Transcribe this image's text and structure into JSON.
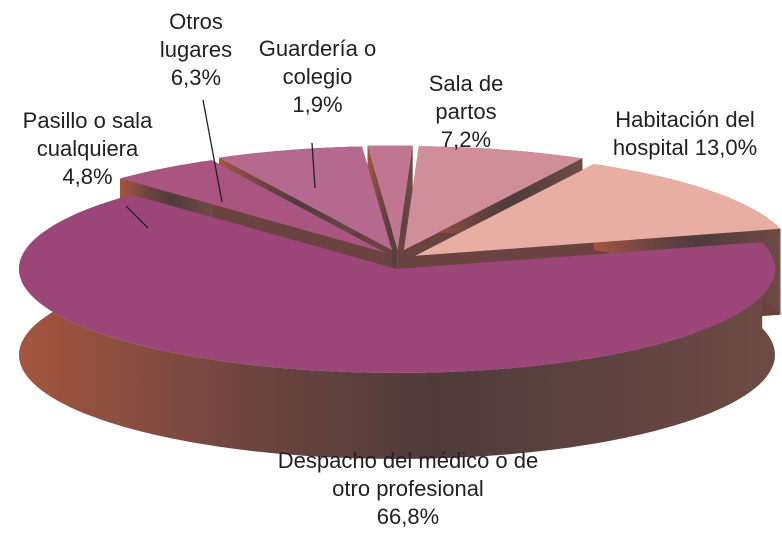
{
  "chart_data": {
    "type": "pie",
    "categories": [
      "Despacho del médico o de otro profesional",
      "Pasillo o sala cualquiera",
      "Otros lugares",
      "Guardería o colegio",
      "Sala de partos",
      "Habitación del hospital"
    ],
    "values": [
      66.8,
      4.8,
      6.3,
      1.9,
      7.2,
      13.0
    ],
    "value_labels": [
      "66,8%",
      "4,8%",
      "6,3%",
      "1,9%",
      "7,2%",
      "13,0%"
    ],
    "colors": [
      "#9b4578",
      "#a9557f",
      "#b5698e",
      "#c07690",
      "#cf8e99",
      "#e9aea3"
    ]
  }
}
